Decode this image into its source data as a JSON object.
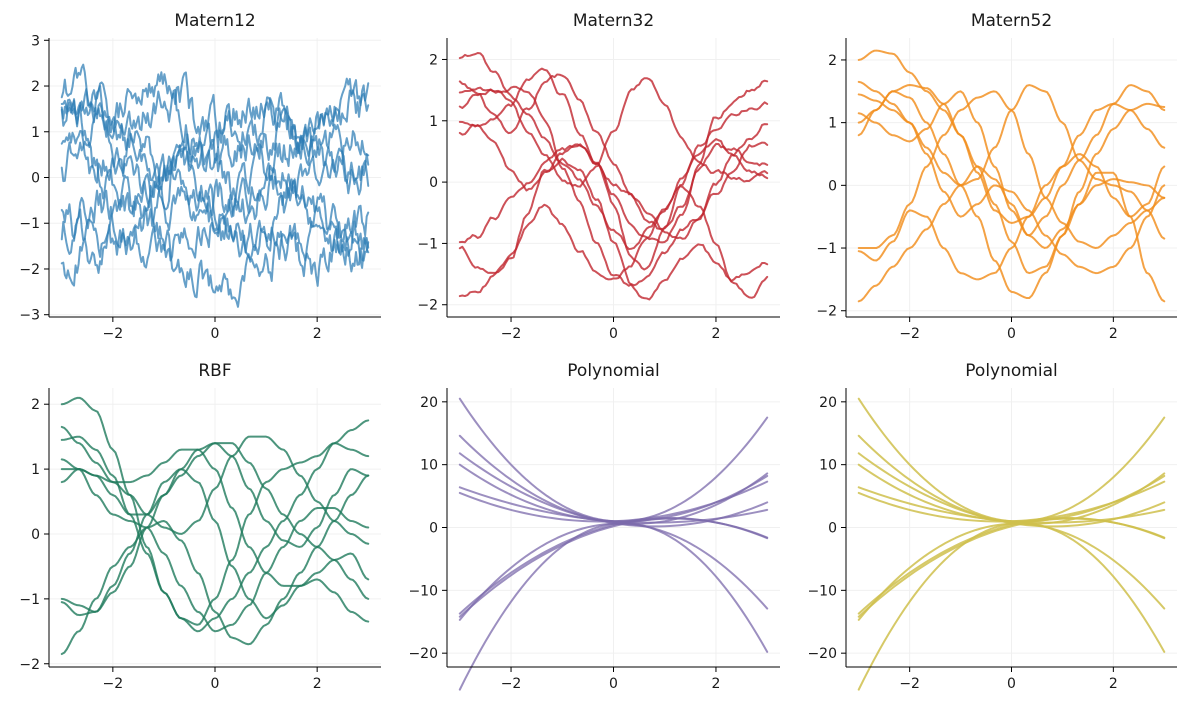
{
  "chart_data": [
    {
      "type": "line",
      "title": "Matern12",
      "kernel": "matern12",
      "color": "#2b7bb4",
      "opacity": 0.72,
      "n_points": 200,
      "xlim": [
        -3.25,
        3.25
      ],
      "ylim": [
        -3.05,
        3.05
      ],
      "x_ticks": [
        -2,
        0,
        2
      ],
      "y_ticks": [
        -3,
        -2,
        -1,
        0,
        1,
        2,
        3
      ],
      "grid": true,
      "x_range": [
        -3,
        3
      ],
      "series": [
        {
          "values": [
            2.0,
            1.8,
            1.5,
            1.2,
            0.9,
            1.3,
            1.6,
            1.4,
            0.8,
            0.3,
            0.6,
            1.0,
            1.4,
            1.7,
            1.2,
            0.9,
            1.3,
            1.6,
            1.5
          ]
        },
        {
          "values": [
            1.6,
            1.5,
            1.7,
            1.3,
            1.5,
            1.8,
            2.2,
            1.9,
            1.2,
            0.8,
            1.0,
            0.5,
            0.7,
            1.2,
            0.9,
            0.6,
            0.8,
            0.3,
            0.2
          ]
        },
        {
          "values": [
            1.5,
            1.3,
            1.6,
            1.0,
            0.7,
            0.4,
            0.1,
            0.3,
            0.0,
            -0.3,
            -0.5,
            -0.2,
            0.2,
            0.6,
            0.9,
            1.2,
            1.5,
            1.7,
            1.8
          ]
        },
        {
          "values": [
            1.2,
            1.4,
            1.0,
            0.6,
            0.8,
            0.3,
            -0.1,
            0.2,
            0.5,
            0.1,
            -0.3,
            -0.6,
            -0.2,
            0.1,
            -0.1,
            0.3,
            0.5,
            0.8,
            0.6
          ]
        },
        {
          "values": [
            0.9,
            0.6,
            0.3,
            0.5,
            0.2,
            -0.2,
            0.0,
            0.4,
            0.7,
            1.1,
            1.4,
            1.6,
            1.5,
            1.2,
            0.8,
            0.5,
            0.3,
            0.0,
            0.1
          ]
        },
        {
          "values": [
            0.2,
            0.5,
            0.1,
            -0.3,
            -0.5,
            -0.2,
            0.2,
            0.0,
            -0.4,
            -0.8,
            -0.6,
            -0.3,
            0.1,
            -0.2,
            -0.5,
            -0.9,
            -1.2,
            -1.0,
            -0.8
          ]
        },
        {
          "values": [
            -0.9,
            -1.1,
            -1.4,
            -1.0,
            -0.6,
            -0.9,
            -1.3,
            -1.6,
            -1.3,
            -0.9,
            -1.2,
            -1.5,
            -1.1,
            -0.7,
            -0.4,
            -0.8,
            -1.1,
            -1.3,
            -1.4
          ]
        },
        {
          "values": [
            -1.1,
            -0.8,
            -0.5,
            -0.9,
            -1.3,
            -1.1,
            -0.7,
            -0.3,
            -0.6,
            -1.0,
            -1.4,
            -1.2,
            -1.0,
            -1.5,
            -1.3,
            -1.0,
            -1.4,
            -1.6,
            -1.5
          ]
        },
        {
          "values": [
            -1.8,
            -1.6,
            -1.9,
            -1.5,
            -1.2,
            -1.4,
            -1.7,
            -1.9,
            -2.1,
            -2.4,
            -2.7,
            -2.3,
            -1.9,
            -1.5,
            -1.7,
            -1.9,
            -1.6,
            -1.3,
            -1.5
          ]
        }
      ]
    },
    {
      "type": "line",
      "title": "Matern32",
      "kernel": "matern32",
      "color": "#c1262e",
      "opacity": 0.8,
      "n_points": 120,
      "xlim": [
        -3.25,
        3.25
      ],
      "ylim": [
        -2.2,
        2.35
      ],
      "x_ticks": [
        -2,
        0,
        2
      ],
      "y_ticks": [
        -2,
        -1,
        0,
        1,
        2
      ],
      "grid": true,
      "x_range": [
        -3,
        3
      ],
      "series": [
        {
          "values": [
            2.05,
            2.1,
            1.7,
            1.4,
            1.0,
            0.7,
            0.3,
            0.0,
            -0.4,
            -0.8,
            -1.1,
            -0.8,
            -0.4,
            0.1,
            0.5,
            0.7,
            0.4,
            0.2,
            0.1
          ]
        },
        {
          "values": [
            1.65,
            1.45,
            1.1,
            0.8,
            1.2,
            1.7,
            1.75,
            1.3,
            0.8,
            0.3,
            -0.2,
            -0.6,
            -0.8,
            -0.4,
            0.2,
            0.6,
            0.5,
            0.3,
            0.3
          ]
        },
        {
          "values": [
            1.45,
            1.5,
            1.45,
            1.3,
            0.8,
            0.4,
            0.0,
            -0.1,
            0.2,
            0.8,
            1.5,
            1.7,
            1.2,
            0.7,
            0.4,
            0.2,
            0.1,
            0.05,
            0.1
          ]
        },
        {
          "values": [
            1.2,
            1.4,
            1.5,
            1.55,
            1.4,
            1.0,
            0.3,
            -0.3,
            -1.0,
            -1.5,
            -1.7,
            -1.6,
            -1.2,
            -0.8,
            -0.6,
            -0.1,
            0.4,
            0.7,
            1.0
          ]
        },
        {
          "values": [
            1.0,
            0.9,
            0.6,
            0.2,
            -0.1,
            0.2,
            0.5,
            0.6,
            0.3,
            -0.2,
            -0.6,
            -0.9,
            -1.0,
            -0.5,
            0.3,
            1.0,
            1.3,
            1.5,
            1.7
          ]
        },
        {
          "values": [
            0.8,
            0.9,
            1.0,
            1.2,
            1.7,
            1.8,
            1.4,
            0.8,
            0.3,
            0.0,
            -0.2,
            -0.5,
            -0.8,
            -0.9,
            -0.6,
            -0.2,
            0.2,
            0.6,
            0.6
          ]
        },
        {
          "values": [
            -1.0,
            -0.9,
            -0.6,
            -0.3,
            0.0,
            0.3,
            0.5,
            0.6,
            0.3,
            -0.4,
            -1.2,
            -1.4,
            -0.8,
            0.0,
            0.6,
            0.9,
            1.1,
            1.2,
            1.3
          ]
        },
        {
          "values": [
            -1.05,
            -1.3,
            -1.5,
            -1.2,
            -0.5,
            0.2,
            0.4,
            0.2,
            -0.3,
            -1.0,
            -1.7,
            -1.9,
            -1.6,
            -1.2,
            -1.0,
            -1.3,
            -1.6,
            -1.5,
            -1.3
          ]
        },
        {
          "values": [
            -1.85,
            -1.7,
            -1.5,
            -1.2,
            -0.7,
            -0.4,
            -0.7,
            -1.1,
            -1.4,
            -1.6,
            -1.4,
            -0.9,
            -0.4,
            0.0,
            -0.4,
            -1.0,
            -1.7,
            -1.9,
            -1.6
          ]
        }
      ]
    },
    {
      "type": "line",
      "title": "Matern52",
      "kernel": "matern52",
      "color": "#f28e1c",
      "opacity": 0.82,
      "n_points": 120,
      "xlim": [
        -3.25,
        3.25
      ],
      "ylim": [
        -2.1,
        2.35
      ],
      "x_ticks": [
        -2,
        0,
        2
      ],
      "y_ticks": [
        -2,
        -1,
        0,
        1,
        2
      ],
      "grid": true,
      "x_range": [
        -3,
        3
      ],
      "series": [
        {
          "values": [
            2.0,
            2.15,
            2.1,
            1.8,
            1.5,
            1.2,
            0.8,
            0.3,
            -0.3,
            -0.9,
            -1.4,
            -1.3,
            -0.8,
            -0.3,
            0.0,
            0.1,
            0.05,
            0.0,
            -0.2
          ]
        },
        {
          "values": [
            1.65,
            1.5,
            1.3,
            1.0,
            0.6,
            0.2,
            0.0,
            0.1,
            0.6,
            1.2,
            1.6,
            1.5,
            1.0,
            0.4,
            0.1,
            0.0,
            -0.1,
            -0.4,
            -0.85
          ]
        },
        {
          "values": [
            1.45,
            1.35,
            1.2,
            1.0,
            0.5,
            -0.1,
            -0.5,
            -0.3,
            0.0,
            -0.1,
            -0.4,
            -0.8,
            -1.1,
            -1.3,
            -1.4,
            -1.3,
            -1.0,
            -0.5,
            0.0
          ]
        },
        {
          "values": [
            1.15,
            1.0,
            0.8,
            0.7,
            0.9,
            1.3,
            1.5,
            1.0,
            0.3,
            -0.4,
            -0.8,
            -0.5,
            0.0,
            0.4,
            0.8,
            1.3,
            1.6,
            1.5,
            1.2
          ]
        },
        {
          "values": [
            1.0,
            1.2,
            1.5,
            1.6,
            1.55,
            1.3,
            0.8,
            0.2,
            -0.4,
            -0.6,
            -0.5,
            -0.2,
            0.3,
            0.8,
            1.2,
            1.3,
            1.2,
            0.9,
            0.6
          ]
        },
        {
          "values": [
            0.8,
            1.2,
            1.5,
            1.4,
            1.0,
            0.5,
            0.0,
            -0.5,
            -1.2,
            -1.7,
            -1.8,
            -1.4,
            -0.8,
            -0.1,
            0.5,
            0.9,
            1.2,
            1.3,
            1.25
          ]
        },
        {
          "values": [
            -1.05,
            -1.2,
            -0.9,
            -0.4,
            -0.5,
            -1.0,
            -1.4,
            -1.5,
            -1.4,
            -1.0,
            -0.5,
            0.0,
            0.3,
            0.5,
            0.3,
            -0.2,
            -0.5,
            -0.3,
            0.3
          ]
        },
        {
          "values": [
            -1.0,
            -1.0,
            -0.8,
            -0.3,
            0.3,
            0.8,
            1.2,
            1.4,
            1.5,
            1.2,
            0.5,
            -0.2,
            -0.6,
            -0.9,
            -1.0,
            -0.8,
            -0.6,
            -0.4,
            -0.2
          ]
        },
        {
          "values": [
            -1.85,
            -1.6,
            -1.3,
            -1.0,
            -0.7,
            -0.3,
            0.0,
            0.3,
            0.1,
            -0.3,
            -0.8,
            -1.0,
            -0.7,
            -0.3,
            0.2,
            0.2,
            -0.5,
            -1.4,
            -1.85
          ]
        }
      ]
    },
    {
      "type": "line",
      "title": "RBF",
      "kernel": "rbf",
      "color": "#1f7a5c",
      "opacity": 0.8,
      "n_points": 120,
      "xlim": [
        -3.25,
        3.25
      ],
      "ylim": [
        -2.05,
        2.25
      ],
      "x_ticks": [
        -2,
        0,
        2
      ],
      "y_ticks": [
        -2,
        -1,
        0,
        1,
        2
      ],
      "grid": true,
      "x_range": [
        -3,
        3
      ],
      "series": [
        {
          "values": [
            2.0,
            2.1,
            1.9,
            1.3,
            0.6,
            -0.2,
            -0.9,
            -1.3,
            -1.5,
            -1.3,
            -1.0,
            -0.6,
            -0.2,
            0.2,
            0.6,
            1.0,
            1.4,
            1.6,
            1.75
          ]
        },
        {
          "values": [
            1.65,
            1.4,
            1.1,
            0.8,
            0.6,
            0.3,
            0.1,
            0.0,
            0.2,
            0.7,
            1.2,
            1.5,
            1.5,
            1.3,
            0.9,
            0.5,
            0.2,
            0.0,
            -0.15
          ]
        },
        {
          "values": [
            1.45,
            1.5,
            1.3,
            0.9,
            0.3,
            -0.3,
            -0.9,
            -1.3,
            -1.4,
            -1.0,
            -0.4,
            0.3,
            0.8,
            1.0,
            1.1,
            1.2,
            1.4,
            1.3,
            1.2
          ]
        },
        {
          "values": [
            1.0,
            1.0,
            0.9,
            0.8,
            0.8,
            0.9,
            1.1,
            1.3,
            1.3,
            1.0,
            0.4,
            -0.2,
            -0.6,
            -0.8,
            -0.8,
            -0.6,
            -0.4,
            -0.3,
            -0.7
          ]
        },
        {
          "values": [
            0.8,
            1.0,
            0.9,
            0.6,
            0.3,
            0.3,
            0.6,
            1.0,
            1.3,
            1.4,
            1.2,
            0.7,
            0.2,
            -0.1,
            -0.2,
            0.1,
            0.6,
            1.0,
            0.9
          ]
        },
        {
          "values": [
            1.15,
            1.0,
            0.6,
            0.3,
            0.2,
            0.1,
            -0.3,
            -0.8,
            -1.2,
            -1.5,
            -1.4,
            -1.1,
            -0.6,
            -0.2,
            0.2,
            0.4,
            0.4,
            0.2,
            0.1
          ]
        },
        {
          "values": [
            -1.0,
            -1.1,
            -1.2,
            -0.9,
            -0.5,
            0.1,
            0.6,
            0.9,
            1.2,
            1.4,
            1.4,
            1.1,
            0.7,
            0.3,
            0.0,
            -0.2,
            -0.4,
            -0.7,
            -1.0
          ]
        },
        {
          "values": [
            -1.05,
            -1.25,
            -1.2,
            -0.8,
            -0.3,
            0.3,
            0.8,
            1.0,
            0.8,
            0.2,
            -0.5,
            -1.0,
            -1.3,
            -1.1,
            -0.8,
            -0.7,
            -0.9,
            -1.2,
            -1.35
          ]
        },
        {
          "values": [
            -1.85,
            -1.5,
            -1.0,
            -0.5,
            -0.2,
            0.1,
            0.2,
            -0.1,
            -0.6,
            -1.2,
            -1.6,
            -1.7,
            -1.4,
            -1.0,
            -0.6,
            -0.2,
            0.2,
            0.6,
            0.9
          ]
        }
      ]
    },
    {
      "type": "line",
      "title": "Polynomial",
      "kernel": "polynomial",
      "color": "#7b6aab",
      "opacity": 0.75,
      "n_points": 60,
      "xlim": [
        -3.25,
        3.25
      ],
      "ylim": [
        -22.2,
        22.2
      ],
      "x_ticks": [
        -2,
        0,
        2
      ],
      "y_ticks": [
        -20,
        -10,
        0,
        10,
        20
      ],
      "grid": true,
      "x_range": [
        -3,
        3
      ],
      "series": [
        {
          "coeffs": [
            1.0,
            -0.5,
            2.0
          ]
        },
        {
          "coeffs": [
            0.8,
            -1.0,
            1.2
          ]
        },
        {
          "coeffs": [
            1.0,
            -0.3,
            0.9
          ]
        },
        {
          "coeffs": [
            0.7,
            -1.3,
            0.8
          ]
        },
        {
          "coeffs": [
            1.0,
            0.3,
            0.6
          ]
        },
        {
          "coeffs": [
            1.0,
            -0.6,
            0.4
          ]
        },
        {
          "coeffs": [
            0.4,
            2.0,
            -0.9
          ]
        },
        {
          "coeffs": [
            0.2,
            2.1,
            -0.9
          ]
        },
        {
          "coeffs": [
            0.6,
            0.3,
            -1.6
          ]
        },
        {
          "coeffs": [
            0.6,
            1.0,
            -2.6
          ]
        }
      ]
    },
    {
      "type": "line",
      "title": "Polynomial",
      "kernel": "polynomial",
      "color": "#cfc04c",
      "opacity": 0.85,
      "n_points": 60,
      "xlim": [
        -3.25,
        3.25
      ],
      "ylim": [
        -22.2,
        22.2
      ],
      "x_ticks": [
        -2,
        0,
        2
      ],
      "y_ticks": [
        -20,
        -10,
        0,
        10,
        20
      ],
      "grid": true,
      "x_range": [
        -3,
        3
      ],
      "series": [
        {
          "coeffs": [
            1.0,
            -0.5,
            2.0
          ]
        },
        {
          "coeffs": [
            0.8,
            -1.0,
            1.2
          ]
        },
        {
          "coeffs": [
            1.0,
            -0.3,
            0.9
          ]
        },
        {
          "coeffs": [
            0.7,
            -1.3,
            0.8
          ]
        },
        {
          "coeffs": [
            1.0,
            0.3,
            0.6
          ]
        },
        {
          "coeffs": [
            1.0,
            -0.6,
            0.4
          ]
        },
        {
          "coeffs": [
            0.4,
            2.0,
            -0.9
          ]
        },
        {
          "coeffs": [
            0.2,
            2.1,
            -0.9
          ]
        },
        {
          "coeffs": [
            0.6,
            0.3,
            -1.6
          ]
        },
        {
          "coeffs": [
            0.6,
            1.0,
            -2.6
          ]
        }
      ]
    }
  ]
}
